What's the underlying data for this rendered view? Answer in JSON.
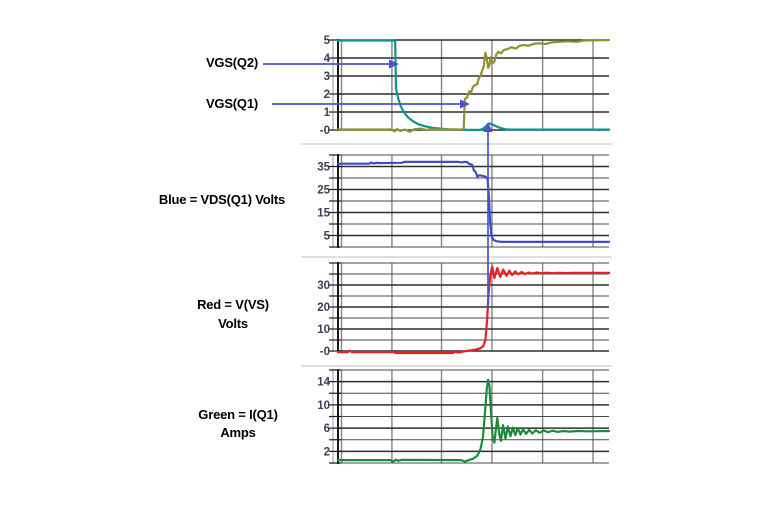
{
  "figure": {
    "background": "#ffffff",
    "annotations": {
      "vgs_q2_label": "VGS(Q2)",
      "vgs_q1_label": "VGS(Q1)",
      "vds_label": "Blue = VDS(Q1) Volts",
      "vvs_label_line1": "Red = V(VS)",
      "vvs_label_line2": "Volts",
      "iq1_label_line1": "Green = I(Q1)",
      "iq1_label_line2": "Amps"
    },
    "colors": {
      "vgs_q2_trace": "#0d9394",
      "vgs_q1_trace": "#8f9130",
      "vds_trace": "#3a4fc4",
      "vvs_trace": "#ec1c24",
      "iq1_trace": "#1d8a3a",
      "annotation_arrow": "#4a52cc",
      "grid_major": "#2e2e2e",
      "grid_minor": "#4a4a4a",
      "grid_vertical": "#858585",
      "axis_black": "#1a1a1a",
      "axis_gray": "#b0b0b0",
      "separator": "#cccccc",
      "tick_label": "#3e3e57"
    }
  },
  "chart_data": [
    {
      "type": "line",
      "panel": "gate-drive-voltages",
      "ylabel": "Volts",
      "xlabel": "",
      "ylim": [
        0,
        5
      ],
      "y_gridlines": [
        5,
        4,
        3,
        2,
        1,
        0
      ],
      "y_ticks": [
        {
          "value": 5,
          "label": "5"
        },
        {
          "value": 4,
          "label": "4"
        },
        {
          "value": 3,
          "label": "3"
        },
        {
          "value": 2,
          "label": "2"
        },
        {
          "value": 1,
          "label": "1"
        },
        {
          "value": 0,
          "label": "-0"
        }
      ],
      "x_gridlines_pct": [
        1.3,
        19.9,
        38.2,
        56.8,
        75.5,
        94.1
      ],
      "series": [
        {
          "name": "VGS(Q2)",
          "unit": "Volts",
          "color_key": "vgs_q2_trace",
          "points": [
            [
              0,
              4.97
            ],
            [
              20.6,
              4.97
            ],
            [
              21.1,
              4.9
            ],
            [
              21.4,
              2.3
            ],
            [
              22.2,
              1.75
            ],
            [
              23.2,
              1.3
            ],
            [
              24.5,
              0.95
            ],
            [
              26,
              0.68
            ],
            [
              28,
              0.45
            ],
            [
              30,
              0.3
            ],
            [
              32.5,
              0.19
            ],
            [
              35,
              0.12
            ],
            [
              38,
              0.07
            ],
            [
              41,
              0.04
            ],
            [
              44,
              0.02
            ],
            [
              48,
              0.01
            ],
            [
              52.5,
              0.01
            ],
            [
              53.8,
              0.1
            ],
            [
              55,
              0.28
            ],
            [
              56,
              0.36
            ],
            [
              57.2,
              0.3
            ],
            [
              58.6,
              0.19
            ],
            [
              60.2,
              0.1
            ],
            [
              62,
              0.04
            ],
            [
              64,
              0.02
            ],
            [
              100,
              0.02
            ]
          ]
        },
        {
          "name": "VGS(Q1)",
          "unit": "Volts",
          "color_key": "vgs_q1_trace",
          "points": [
            [
              0,
              0.03
            ],
            [
              19.8,
              0.03
            ],
            [
              20.8,
              -0.07
            ],
            [
              21.8,
              0.05
            ],
            [
              23,
              -0.05
            ],
            [
              24.6,
              0.03
            ],
            [
              26.5,
              -0.1
            ],
            [
              28,
              0.04
            ],
            [
              30.5,
              0.08
            ],
            [
              32.5,
              0
            ],
            [
              34,
              0.03
            ],
            [
              46.4,
              0.03
            ],
            [
              46.8,
              1.72
            ],
            [
              47.6,
              1.8
            ],
            [
              48.4,
              2.15
            ],
            [
              49,
              2.05
            ],
            [
              49.8,
              2.4
            ],
            [
              50.6,
              2.5
            ],
            [
              51.4,
              2.55
            ],
            [
              52,
              2.9
            ],
            [
              52.6,
              3
            ],
            [
              53.2,
              3.3
            ],
            [
              53.8,
              3.55
            ],
            [
              54.4,
              4.3
            ],
            [
              54.9,
              4
            ],
            [
              55.4,
              3.45
            ],
            [
              55.9,
              3.6
            ],
            [
              56.4,
              4.05
            ],
            [
              57,
              3.7
            ],
            [
              57.7,
              3.8
            ],
            [
              58.4,
              4.2
            ],
            [
              59.2,
              4.35
            ],
            [
              60.2,
              4.25
            ],
            [
              61.2,
              4.45
            ],
            [
              62.6,
              4.5
            ],
            [
              64,
              4.6
            ],
            [
              65.6,
              4.52
            ],
            [
              67,
              4.68
            ],
            [
              68.6,
              4.72
            ],
            [
              70.2,
              4.68
            ],
            [
              72,
              4.78
            ],
            [
              74,
              4.82
            ],
            [
              76.5,
              4.78
            ],
            [
              79,
              4.87
            ],
            [
              82,
              4.9
            ],
            [
              85,
              4.93
            ],
            [
              88,
              4.9
            ],
            [
              91,
              4.97
            ],
            [
              100,
              5
            ]
          ]
        }
      ]
    },
    {
      "type": "line",
      "panel": "vds-q1-voltage",
      "ylabel": "Volts",
      "xlabel": "",
      "ylim": [
        0,
        40
      ],
      "y_gridlines": [
        40,
        35,
        30,
        25,
        20,
        15,
        10,
        5,
        0
      ],
      "y_ticks": [
        {
          "value": 35,
          "label": "35"
        },
        {
          "value": 25,
          "label": "25"
        },
        {
          "value": 15,
          "label": "15"
        },
        {
          "value": 5,
          "label": "5"
        }
      ],
      "x_gridlines_pct": [
        1.3,
        19.9,
        38.2,
        56.8,
        75.5,
        94.1
      ],
      "series": [
        {
          "name": "VDS(Q1)",
          "unit": "Volts",
          "color_key": "vds_trace",
          "points": [
            [
              0,
              36.2
            ],
            [
              11.5,
              36.2
            ],
            [
              12.2,
              36.7
            ],
            [
              13.2,
              36.3
            ],
            [
              14.2,
              36.6
            ],
            [
              15.5,
              36.5
            ],
            [
              23.5,
              36.6
            ],
            [
              24.5,
              37
            ],
            [
              44.5,
              37
            ],
            [
              45.5,
              36.8
            ],
            [
              46.5,
              37
            ],
            [
              47.8,
              36.9
            ],
            [
              48.2,
              36.2
            ],
            [
              49.5,
              35.8
            ],
            [
              50.2,
              33.2
            ],
            [
              50.8,
              32.6
            ],
            [
              51.4,
              30.6
            ],
            [
              52.2,
              31.2
            ],
            [
              53.4,
              30.9
            ],
            [
              54.4,
              30.6
            ],
            [
              55.2,
              29.5
            ],
            [
              55.7,
              22
            ],
            [
              56.1,
              12
            ],
            [
              56.6,
              4.8
            ],
            [
              57.4,
              3
            ],
            [
              58.6,
              2.5
            ],
            [
              60.5,
              2.2
            ],
            [
              100,
              2.2
            ]
          ]
        }
      ]
    },
    {
      "type": "line",
      "panel": "vs-node-voltage",
      "ylabel": "Volts",
      "xlabel": "",
      "ylim": [
        0,
        40
      ],
      "y_gridlines": [
        40,
        35,
        30,
        25,
        20,
        15,
        10,
        5,
        0
      ],
      "y_ticks": [
        {
          "value": 30,
          "label": "30"
        },
        {
          "value": 20,
          "label": "20"
        },
        {
          "value": 10,
          "label": "10"
        },
        {
          "value": 0,
          "label": "-0"
        }
      ],
      "x_gridlines_pct": [
        1.3,
        19.9,
        38.2,
        56.8,
        75.5,
        94.1
      ],
      "series": [
        {
          "name": "V(VS)",
          "unit": "Volts",
          "color_key": "vvs_trace",
          "points": [
            [
              0,
              -0.5
            ],
            [
              3.6,
              -0.5
            ],
            [
              4.3,
              0.2
            ],
            [
              5.1,
              -0.5
            ],
            [
              20.5,
              -0.5
            ],
            [
              21.3,
              -0.9
            ],
            [
              42.5,
              -0.9
            ],
            [
              43.3,
              -0.3
            ],
            [
              44.3,
              -0.7
            ],
            [
              46.5,
              -0.2
            ],
            [
              48.5,
              0.2
            ],
            [
              50.5,
              0.6
            ],
            [
              52.3,
              1.1
            ],
            [
              53.6,
              2.2
            ],
            [
              54.4,
              5
            ],
            [
              55,
              14
            ],
            [
              55.6,
              27
            ],
            [
              56.2,
              34.5
            ],
            [
              56.9,
              38.3
            ],
            [
              57.7,
              33.2
            ],
            [
              58.8,
              37.7
            ],
            [
              59.9,
              33.7
            ],
            [
              61,
              37
            ],
            [
              62.1,
              34.2
            ],
            [
              63.2,
              36.5
            ],
            [
              64.3,
              34.5
            ],
            [
              65.4,
              36.2
            ],
            [
              66.5,
              34.8
            ],
            [
              67.7,
              35.9
            ],
            [
              69,
              35
            ],
            [
              70.4,
              35.7
            ],
            [
              71.8,
              35.2
            ],
            [
              73.4,
              35.7
            ],
            [
              75,
              35.3
            ],
            [
              77,
              35.6
            ],
            [
              79,
              35.35
            ],
            [
              81.5,
              35.55
            ],
            [
              84,
              35.4
            ],
            [
              87,
              35.5
            ],
            [
              100,
              35.5
            ]
          ]
        }
      ]
    },
    {
      "type": "line",
      "panel": "q1-drain-current",
      "ylabel": "Amps",
      "xlabel": "",
      "ylim": [
        0,
        16
      ],
      "y_gridlines": [
        16,
        14,
        12,
        10,
        8,
        6,
        4,
        2,
        0
      ],
      "y_ticks": [
        {
          "value": 14,
          "label": "14"
        },
        {
          "value": 10,
          "label": "10"
        },
        {
          "value": 6,
          "label": "6"
        },
        {
          "value": 2,
          "label": "2"
        }
      ],
      "x_gridlines_pct": [
        1.3,
        19.9,
        38.2,
        56.8,
        75.5,
        94.1
      ],
      "series": [
        {
          "name": "I(Q1)",
          "unit": "Amps",
          "color_key": "iq1_trace",
          "points": [
            [
              0,
              0.5
            ],
            [
              19.3,
              0.5
            ],
            [
              20.3,
              0.25
            ],
            [
              21.3,
              0.55
            ],
            [
              22.3,
              0.4
            ],
            [
              23.6,
              0.55
            ],
            [
              45.5,
              0.5
            ],
            [
              46.8,
              0.25
            ],
            [
              48.3,
              0.5
            ],
            [
              50,
              0.75
            ],
            [
              51.5,
              1.3
            ],
            [
              52.6,
              2.4
            ],
            [
              53.5,
              4.5
            ],
            [
              54.2,
              8.5
            ],
            [
              54.9,
              12.8
            ],
            [
              55.4,
              14.3
            ],
            [
              55.9,
              13.2
            ],
            [
              56.5,
              8.5
            ],
            [
              57.1,
              4.4
            ],
            [
              57.7,
              3.5
            ],
            [
              58.3,
              6
            ],
            [
              58.8,
              7.8
            ],
            [
              59.5,
              5
            ],
            [
              60.1,
              3.8
            ],
            [
              60.9,
              6.5
            ],
            [
              61.8,
              4.2
            ],
            [
              62.7,
              6.3
            ],
            [
              63.6,
              4.6
            ],
            [
              64.5,
              6.1
            ],
            [
              65.4,
              4.8
            ],
            [
              66.3,
              6
            ],
            [
              67.3,
              4.9
            ],
            [
              68.3,
              5.8
            ],
            [
              69.4,
              5
            ],
            [
              70.5,
              5.7
            ],
            [
              71.7,
              5.1
            ],
            [
              73,
              5.65
            ],
            [
              74.4,
              5.2
            ],
            [
              75.9,
              5.6
            ],
            [
              77.5,
              5.3
            ],
            [
              79.2,
              5.55
            ],
            [
              81,
              5.35
            ],
            [
              83,
              5.5
            ],
            [
              85.5,
              5.4
            ],
            [
              88.5,
              5.5
            ],
            [
              92,
              5.45
            ],
            [
              100,
              5.5
            ]
          ]
        }
      ]
    }
  ]
}
